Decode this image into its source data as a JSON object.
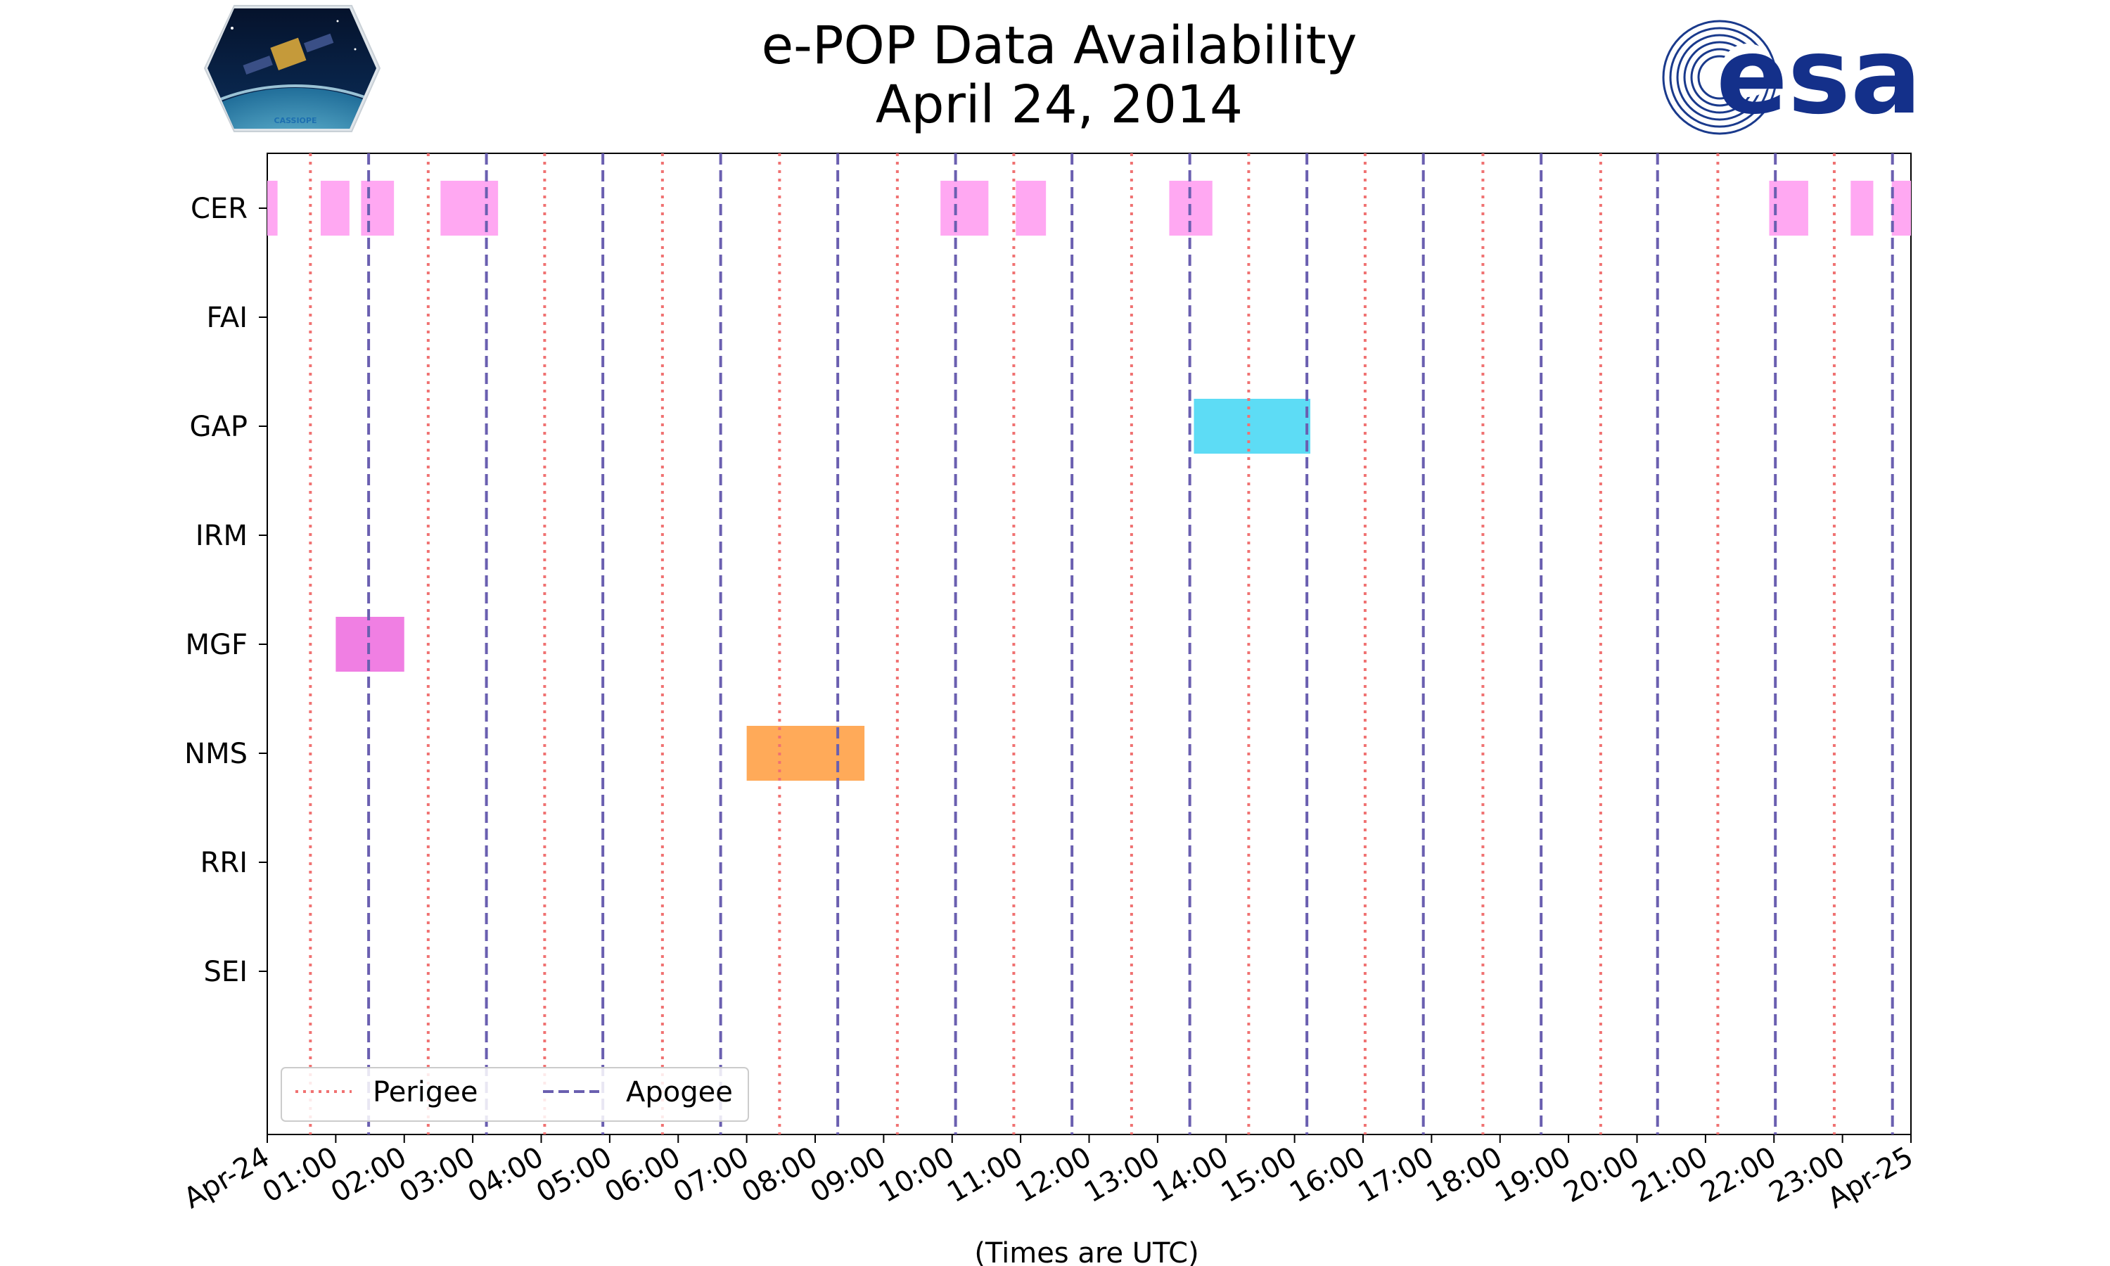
{
  "chart_data": {
    "type": "timeline",
    "title": "e-POP Data Availability",
    "subtitle": "April 24, 2014",
    "xlabel": "(Times are UTC)",
    "xlim_hours": [
      0,
      24
    ],
    "x_tick_labels": [
      "Apr-24",
      "01:00",
      "02:00",
      "03:00",
      "04:00",
      "05:00",
      "06:00",
      "07:00",
      "08:00",
      "09:00",
      "10:00",
      "11:00",
      "12:00",
      "13:00",
      "14:00",
      "15:00",
      "16:00",
      "17:00",
      "18:00",
      "19:00",
      "20:00",
      "21:00",
      "22:00",
      "23:00",
      "Apr-25"
    ],
    "instruments": [
      "CER",
      "FAI",
      "GAP",
      "IRM",
      "MGF",
      "NMS",
      "RRI",
      "SEI"
    ],
    "intervals": [
      {
        "instrument": "CER",
        "start": 0.0,
        "end": 0.15
      },
      {
        "instrument": "CER",
        "start": 0.78,
        "end": 1.2
      },
      {
        "instrument": "CER",
        "start": 1.37,
        "end": 1.85
      },
      {
        "instrument": "CER",
        "start": 2.53,
        "end": 3.37
      },
      {
        "instrument": "CER",
        "start": 9.83,
        "end": 10.53
      },
      {
        "instrument": "CER",
        "start": 10.93,
        "end": 11.37
      },
      {
        "instrument": "CER",
        "start": 13.17,
        "end": 13.8
      },
      {
        "instrument": "CER",
        "start": 21.93,
        "end": 22.5
      },
      {
        "instrument": "CER",
        "start": 23.12,
        "end": 23.45
      },
      {
        "instrument": "CER",
        "start": 23.72,
        "end": 24.0
      },
      {
        "instrument": "GAP",
        "start": 13.53,
        "end": 15.23
      },
      {
        "instrument": "MGF",
        "start": 1.0,
        "end": 2.0
      },
      {
        "instrument": "NMS",
        "start": 7.0,
        "end": 8.72
      }
    ],
    "perigee_hours": [
      0.63,
      2.35,
      4.05,
      5.77,
      7.48,
      9.2,
      10.9,
      12.62,
      14.33,
      16.03,
      17.75,
      19.47,
      21.18,
      22.88
    ],
    "apogee_hours": [
      1.48,
      3.2,
      4.9,
      6.62,
      8.33,
      10.05,
      11.75,
      13.47,
      15.18,
      16.88,
      18.6,
      20.3,
      22.02,
      23.73
    ],
    "legend": {
      "items": [
        "Perigee",
        "Apogee"
      ],
      "placement": "lower-left"
    },
    "colors": {
      "CER": "#ffa8f2",
      "GAP": "#5ddcf5",
      "MGF": "#f07fe3",
      "NMS": "#ffaa59",
      "perigee": "#f07272",
      "apogee": "#6a5fb0"
    }
  },
  "logos": {
    "mission_text": "CASSIOPE",
    "agency_text": "esa"
  }
}
